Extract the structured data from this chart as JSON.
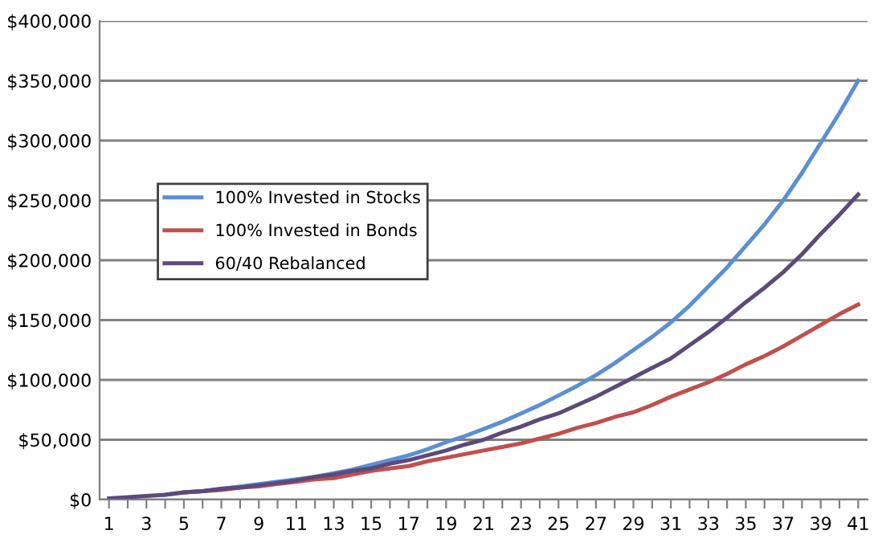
{
  "chart_data": {
    "type": "line",
    "categories": [
      "1",
      null,
      "3",
      null,
      "5",
      null,
      "7",
      null,
      "9",
      null,
      "11",
      null,
      "13",
      null,
      "15",
      null,
      "17",
      null,
      "19",
      null,
      "21",
      null,
      "23",
      null,
      "25",
      null,
      "27",
      null,
      "29",
      null,
      "31",
      null,
      "33",
      null,
      "35",
      null,
      "37",
      null,
      "39",
      null,
      "41"
    ],
    "series": [
      {
        "name": "100% Invested in Stocks",
        "color": "#5b8fd4",
        "values": [
          null,
          null,
          null,
          4000,
          6000,
          7000,
          9000,
          11000,
          13000,
          15000,
          17000,
          19000,
          22000,
          25000,
          29000,
          33000,
          37000,
          42000,
          48000,
          53000,
          59000,
          65000,
          72000,
          79000,
          87000,
          95000,
          104000,
          114000,
          125000,
          136000,
          148000,
          162000,
          178000,
          194000,
          212000,
          230000,
          250000,
          273000,
          298000,
          323000,
          350000
        ]
      },
      {
        "name": "100% Invested in Bonds",
        "color": "#c0504d",
        "values": [
          null,
          null,
          null,
          null,
          6000,
          7000,
          8000,
          10000,
          11000,
          13000,
          15000,
          17000,
          18000,
          21000,
          24000,
          26000,
          28000,
          32000,
          35000,
          38000,
          41000,
          44000,
          47000,
          51000,
          55000,
          60000,
          64000,
          69000,
          73000,
          79000,
          86000,
          92000,
          98000,
          105000,
          113000,
          120000,
          128000,
          137000,
          146000,
          155000,
          163000
        ]
      },
      {
        "name": "60/40 Rebalanced",
        "color": "#5c4a7a",
        "values": [
          1000,
          2000,
          3000,
          4000,
          6000,
          7000,
          9000,
          10000,
          12000,
          14000,
          16000,
          19000,
          21000,
          24000,
          26000,
          30000,
          33000,
          37000,
          41000,
          46000,
          50000,
          56000,
          61000,
          67000,
          72000,
          79000,
          86000,
          94000,
          102000,
          110000,
          118000,
          129000,
          140000,
          152000,
          165000,
          177000,
          190000,
          205000,
          222000,
          238000,
          255000
        ]
      }
    ],
    "ylim": [
      0,
      400000
    ],
    "yticks": [
      {
        "value": 0,
        "label": "$0"
      },
      {
        "value": 50000,
        "label": "$50,000"
      },
      {
        "value": 100000,
        "label": "$100,000"
      },
      {
        "value": 150000,
        "label": "$150,000"
      },
      {
        "value": 200000,
        "label": "$200,000"
      },
      {
        "value": 250000,
        "label": "$250,000"
      },
      {
        "value": 300000,
        "label": "$300,000"
      },
      {
        "value": 350000,
        "label": "$350,000"
      },
      {
        "value": 400000,
        "label": "$400,000"
      }
    ],
    "grid": "y",
    "legend": "left",
    "marker": "none",
    "line_style": "solid"
  }
}
